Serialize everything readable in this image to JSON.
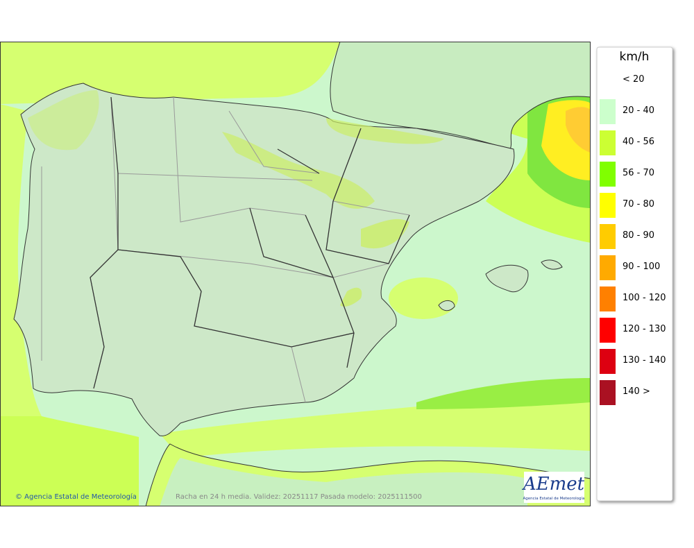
{
  "legend": {
    "title": "km/h",
    "items": [
      {
        "label": "< 20",
        "color": "#ffffff"
      },
      {
        "label": "20 - 40",
        "color": "#ccffcc"
      },
      {
        "label": "40 - 56",
        "color": "#ccff33"
      },
      {
        "label": "56 - 70",
        "color": "#80ff00"
      },
      {
        "label": "70 - 80",
        "color": "#ffff00"
      },
      {
        "label": "80 - 90",
        "color": "#ffcc00"
      },
      {
        "label": "90 - 100",
        "color": "#ffaa00"
      },
      {
        "label": "100 - 120",
        "color": "#ff8000"
      },
      {
        "label": "120 - 130",
        "color": "#ff0000"
      },
      {
        "label": "130 - 140",
        "color": "#dd0011"
      },
      {
        "label": "140 >",
        "color": "#aa1122"
      }
    ]
  },
  "footer": {
    "credit": "© Agencia Estatal de Meteorología",
    "caption": "Racha en 24 h media. Validez: 20251117 Pasada modelo: 2025111500"
  },
  "logo": {
    "name": "AEmet",
    "subtitle": "Agencia Estatal de Meteorología"
  }
}
